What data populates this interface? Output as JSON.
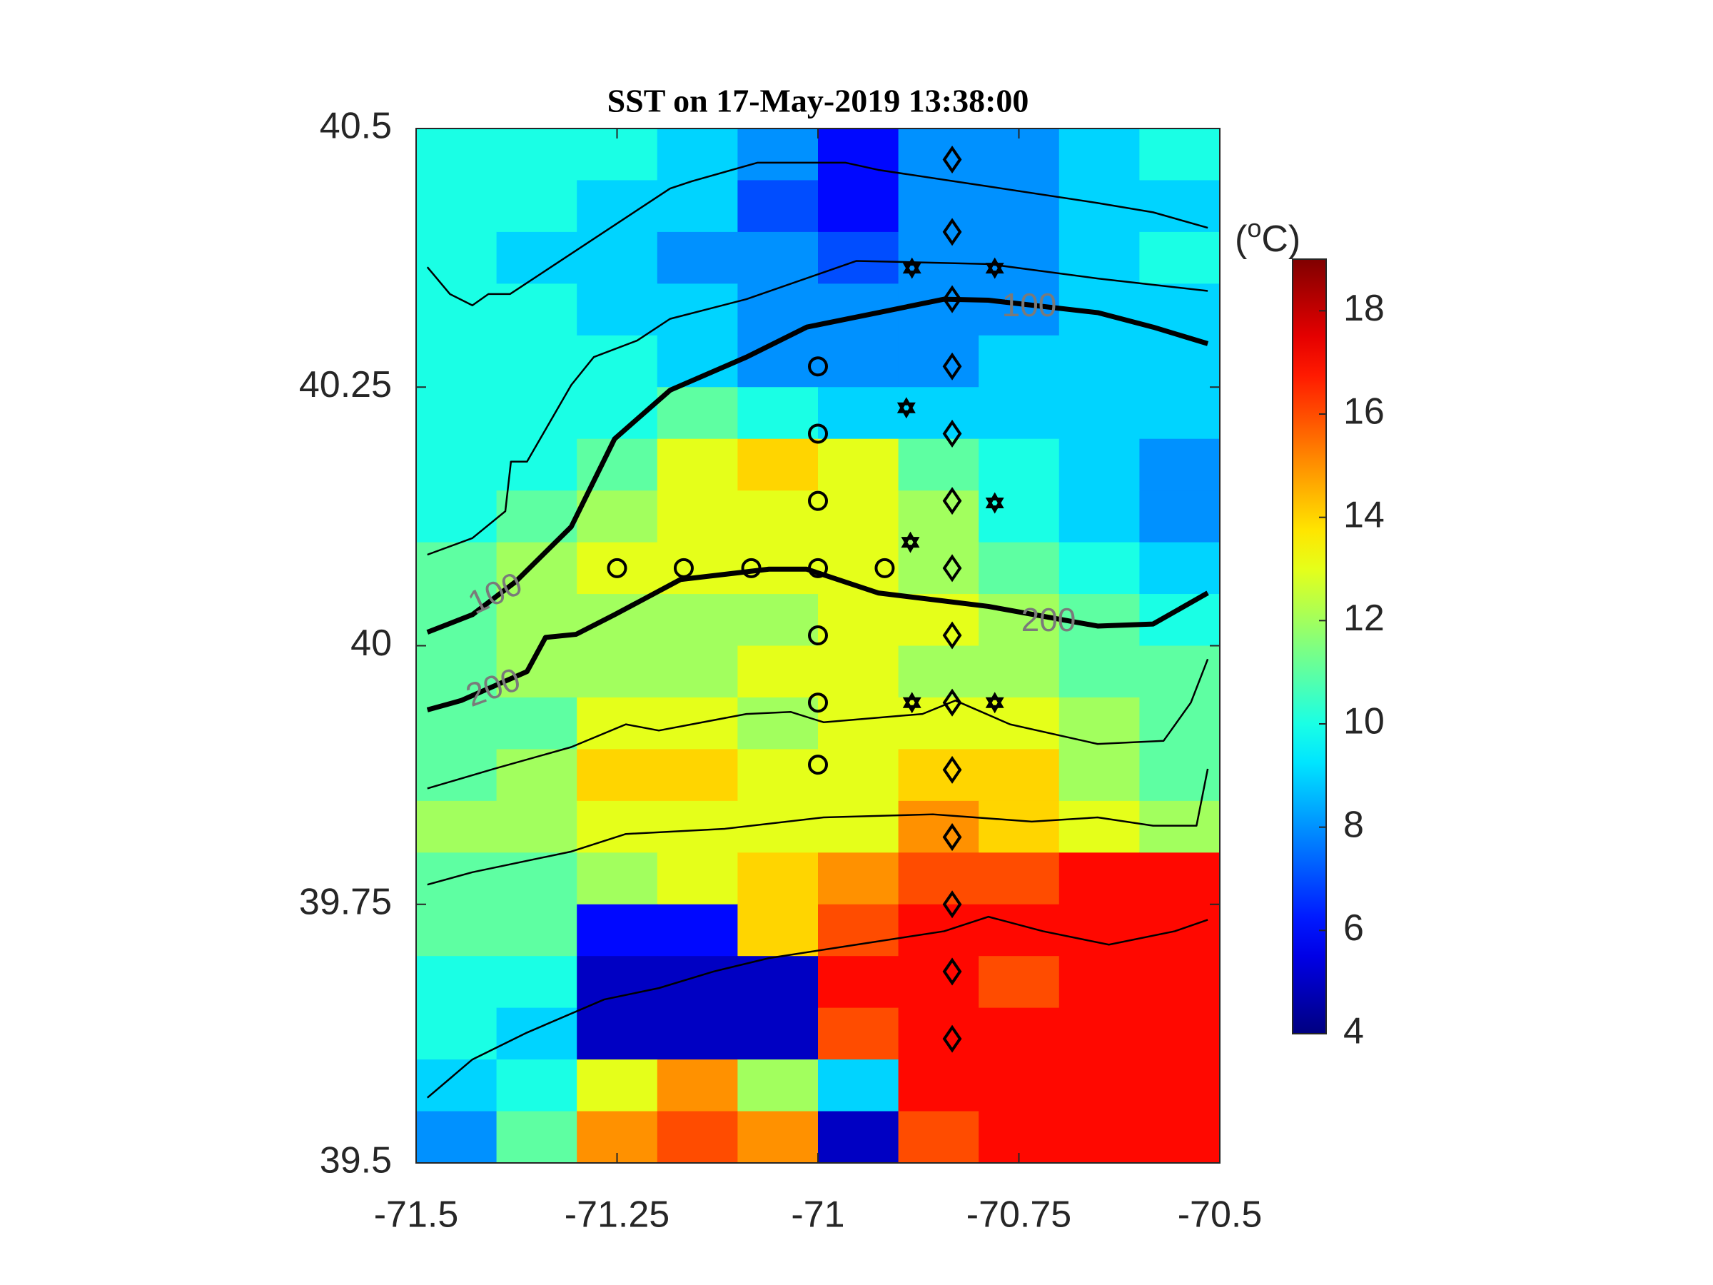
{
  "chart_data": {
    "type": "heatmap",
    "title": "SST on 17-May-2019 13:38:00",
    "xlim": [
      -71.5,
      -70.5
    ],
    "xticks": [
      -71.5,
      -71.25,
      -71,
      -70.75,
      -70.5
    ],
    "ylim": [
      39.5,
      40.5
    ],
    "yticks": [
      39.5,
      39.75,
      40,
      40.25,
      40.5
    ],
    "colormap": "jet",
    "clim": [
      4,
      19
    ],
    "cticks": [
      4,
      6,
      8,
      10,
      12,
      14,
      16,
      18
    ],
    "colorbar_label": {
      "prefix": "(",
      "superscript": "o",
      "suffix": "C)"
    },
    "x": [
      -71.45,
      -71.35,
      -71.25,
      -71.15,
      -71.05,
      -70.95,
      -70.85,
      -70.75,
      -70.65,
      -70.55
    ],
    "y": [
      40.475,
      40.425,
      40.375,
      40.325,
      40.275,
      40.225,
      40.175,
      40.125,
      40.075,
      40.025,
      39.975,
      39.925,
      39.875,
      39.825,
      39.775,
      39.725,
      39.675,
      39.625,
      39.575,
      39.525
    ],
    "values": [
      [
        10,
        10,
        10,
        9,
        8,
        6,
        8,
        8,
        9,
        10
      ],
      [
        10,
        10,
        9,
        9,
        7,
        6,
        8,
        8,
        9,
        9
      ],
      [
        10,
        9,
        9,
        8,
        8,
        7,
        8,
        8,
        9,
        10
      ],
      [
        10,
        10,
        9,
        9,
        8,
        8,
        8,
        8,
        9,
        9
      ],
      [
        10,
        10,
        10,
        9,
        8,
        8,
        8,
        9,
        9,
        9
      ],
      [
        10,
        10,
        10,
        11,
        10,
        9,
        9,
        9,
        9,
        9
      ],
      [
        10,
        10,
        11,
        13,
        14,
        13,
        11,
        10,
        9,
        8
      ],
      [
        10,
        11,
        12,
        13,
        13,
        13,
        12,
        10,
        9,
        8
      ],
      [
        11,
        12,
        13,
        13,
        13,
        13,
        12,
        11,
        10,
        9
      ],
      [
        11,
        12,
        12,
        12,
        12,
        13,
        13,
        12,
        11,
        10
      ],
      [
        11,
        12,
        12,
        12,
        13,
        13,
        12,
        12,
        11,
        11
      ],
      [
        11,
        11,
        13,
        13,
        12,
        13,
        13,
        13,
        12,
        11
      ],
      [
        11,
        12,
        14,
        14,
        13,
        13,
        14,
        14,
        12,
        11
      ],
      [
        12,
        12,
        13,
        13,
        13,
        13,
        15,
        14,
        13,
        12
      ],
      [
        11,
        11,
        12,
        13,
        14,
        15,
        16,
        16,
        17,
        17
      ],
      [
        11,
        11,
        6,
        6,
        14,
        16,
        17,
        17,
        17,
        17
      ],
      [
        10,
        10,
        5,
        5,
        5,
        17,
        17,
        16,
        17,
        17
      ],
      [
        10,
        9,
        5,
        5,
        5,
        16,
        17,
        17,
        17,
        17
      ],
      [
        9,
        10,
        13,
        15,
        12,
        9,
        17,
        17,
        17,
        17
      ],
      [
        8,
        11,
        15,
        16,
        15,
        5,
        16,
        17,
        17,
        17
      ]
    ],
    "contours": [
      {
        "label": "100",
        "style": "thick",
        "x": [
          -71.486,
          -71.43,
          -71.376,
          -71.307,
          -71.253,
          -71.184,
          -71.089,
          -71.014,
          -70.925,
          -70.843,
          -70.788,
          -70.652,
          -70.583,
          -70.515
        ],
        "y": [
          40.013,
          40.03,
          40.062,
          40.115,
          40.2,
          40.247,
          40.279,
          40.308,
          40.322,
          40.335,
          40.334,
          40.322,
          40.308,
          40.292
        ]
      },
      {
        "label": "200",
        "style": "thick",
        "x": [
          -71.486,
          -71.444,
          -71.362,
          -71.339,
          -71.301,
          -71.253,
          -71.171,
          -71.061,
          -71.014,
          -70.925,
          -70.788,
          -70.652,
          -70.583,
          -70.515
        ],
        "y": [
          39.938,
          39.947,
          39.975,
          40.008,
          40.011,
          40.03,
          40.064,
          40.074,
          40.074,
          40.051,
          40.038,
          40.019,
          40.021,
          40.051
        ]
      },
      {
        "style": "thin",
        "x": [
          -71.486,
          -71.458,
          -71.43,
          -71.41,
          -71.383,
          -71.184,
          -71.157,
          -71.075,
          -70.966,
          -70.925,
          -70.788,
          -70.652,
          -70.583,
          -70.515
        ],
        "y": [
          40.366,
          40.34,
          40.329,
          40.34,
          40.34,
          40.442,
          40.449,
          40.467,
          40.467,
          40.46,
          40.444,
          40.428,
          40.419,
          40.404
        ]
      },
      {
        "style": "thin",
        "x": [
          -71.486,
          -71.43,
          -71.389,
          -71.382,
          -71.362,
          -71.307,
          -71.279,
          -71.225,
          -71.184,
          -71.089,
          -70.952,
          -70.788,
          -70.652,
          -70.515
        ],
        "y": [
          40.088,
          40.104,
          40.13,
          40.178,
          40.178,
          40.252,
          40.279,
          40.295,
          40.316,
          40.335,
          40.372,
          40.369,
          40.355,
          40.343
        ]
      },
      {
        "style": "thin",
        "x": [
          -71.486,
          -71.403,
          -71.307,
          -71.239,
          -71.198,
          -71.089,
          -71.034,
          -70.993,
          -70.87,
          -70.829,
          -70.761,
          -70.652,
          -70.57,
          -70.536,
          -70.515
        ],
        "y": [
          39.862,
          39.881,
          39.902,
          39.924,
          39.918,
          39.934,
          39.936,
          39.926,
          39.934,
          39.947,
          39.924,
          39.905,
          39.908,
          39.945,
          39.987
        ]
      },
      {
        "style": "thin",
        "x": [
          -71.486,
          -71.43,
          -71.307,
          -71.239,
          -71.116,
          -70.993,
          -70.857,
          -70.734,
          -70.652,
          -70.583,
          -70.529,
          -70.515
        ],
        "y": [
          39.769,
          39.781,
          39.801,
          39.818,
          39.823,
          39.834,
          39.837,
          39.83,
          39.834,
          39.826,
          39.826,
          39.881
        ]
      },
      {
        "style": "thin",
        "x": [
          -71.486,
          -71.43,
          -71.362,
          -71.266,
          -71.198,
          -71.13,
          -71.061,
          -70.952,
          -70.843,
          -70.788,
          -70.72,
          -70.638,
          -70.556,
          -70.515
        ],
        "y": [
          39.563,
          39.6,
          39.626,
          39.658,
          39.669,
          39.685,
          39.698,
          39.711,
          39.724,
          39.738,
          39.724,
          39.711,
          39.724,
          39.735
        ]
      }
    ],
    "stations": [
      {
        "marker": "circle",
        "x": [
          -71,
          -71,
          -71,
          -71,
          -71,
          -71,
          -71,
          -71.25,
          -71.167,
          -71.083,
          -70.917
        ],
        "y": [
          40.27,
          40.205,
          40.14,
          40.075,
          40.01,
          39.945,
          39.885,
          40.075,
          40.075,
          40.075,
          40.075
        ]
      },
      {
        "marker": "diamond",
        "x": [
          -70.833,
          -70.833,
          -70.833,
          -70.833,
          -70.833,
          -70.833,
          -70.833,
          -70.833,
          -70.833,
          -70.833,
          -70.833,
          -70.833,
          -70.833,
          -70.833
        ],
        "y": [
          40.47,
          40.4,
          40.335,
          40.27,
          40.205,
          40.14,
          40.075,
          40.01,
          39.945,
          39.88,
          39.815,
          39.75,
          39.685,
          39.62
        ]
      },
      {
        "marker": "hexagram",
        "x": [
          -70.883,
          -70.78,
          -70.89,
          -70.78,
          -70.885,
          -70.883,
          -70.78
        ],
        "y": [
          40.365,
          40.365,
          40.23,
          40.138,
          40.1,
          39.945,
          39.945
        ]
      }
    ]
  }
}
